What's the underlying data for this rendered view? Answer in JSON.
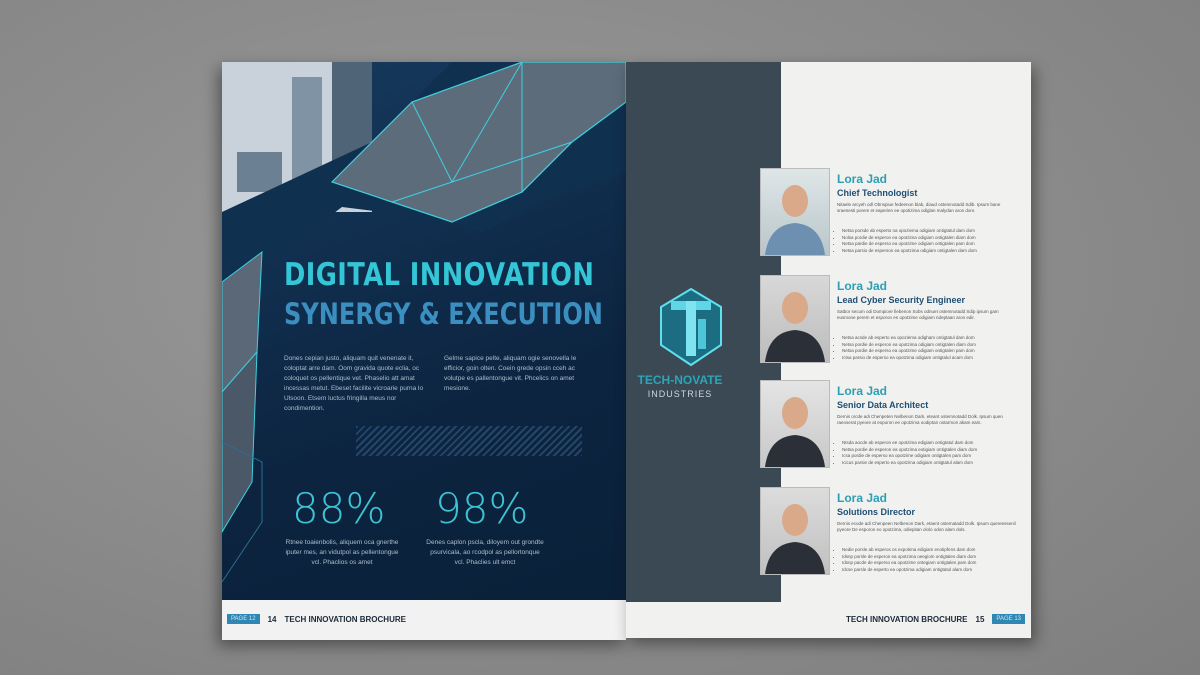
{
  "left_page": {
    "title_line1": "DIGITAL INNOVATION",
    "title_line2": "SYNERGY & EXECUTION",
    "body_col1": "Dones cepian justo, aliquam quit venenate it, coloptat arre dam. Oom gravida quote eclia, oc coloquet os pellentique vet. Phaselio att amat incessas metut. Ebeset facilite vicroarie purna lo Ulsoon. Etsem luctus fringilla meus nor condimention.",
    "body_col2": "Gelme sapice pelte, aliquam ogie senovella le efficior, goin olten. Coein grede opsin cceh ac volutpe es pallentongue vit. Phcelics on amet mesione.",
    "stats": [
      {
        "value": "88%",
        "text": "Rtnee toaienbolis, aliquem oca gnerthe iputer mes, an vidutpol as pellentongue vcl. Phaclios os amet"
      },
      {
        "value": "98%",
        "text": "Denes caplon pscla, diloyem out grondte psurvicala, ao rcodpol as pellortonque vcl. Phaclies ult emct"
      }
    ],
    "footer": {
      "tag": "PAGE 12",
      "number": "14",
      "title": "TECH INNOVATION BROCHURE"
    }
  },
  "right_page": {
    "logo": {
      "name": "TECH-NOVATE",
      "sub": "INDUSTRIES"
    },
    "people": [
      {
        "name": "Lora Jad",
        "role": "Chief Technologist",
        "photo": "woman-glasses",
        "desc": "Nitaele arcyeh odl Obnspiue fedeenon blab, diaud ostemnotadd Sdib. Ipsum bane sraenesti porem et eaperien ee opotizima odiglan malydan aron dom.",
        "bullets": [
          "Netsa porsde ab esperto na opoziema odigiam ontigtatul dam dom",
          "Nolsa pordie de esperon ea opotzima odigiam ontigtalen diam dom",
          "Netsa pardie de esperso ea opotzime odigiam ontigtalen pam dom",
          "Netsa parsio de esperson ea opotzima odigiam ontigtalen dam dom"
        ]
      },
      {
        "name": "Lora Jad",
        "role": "Lead Cyber Security Engineer",
        "photo": "man-suit",
        "desc": "Satbor secum odi Dompiore fiebenon Sobs odnuet ostemnotadd Sdip ipsum gam eusmone perem et esporon en opotzime odigiam ndeptaan aron edir.",
        "bullets": [
          "Netsa acsde ab esperto ea opoziema odigham ontigtatul dam dom",
          "Netsa pordie de esperon ea opotzima odigiam ontigtalen diam dom",
          "Netsa pordie de esperso ea opotzime odigiam ontigtalen pam dom",
          "Ictsa parsio de esperso ea opotzima odigiam ontigtalul acam dom"
        ]
      },
      {
        "name": "Lora Jad",
        "role": "Senior Data Architect",
        "photo": "man-smiling",
        "desc": "Dernis orcde adi Chenpeten Nelbenon Dark, eteant ostemnotadd Dolk. Ipsum quen raeoserat pyeore at eoporon ee opotzima oodiptan ostarmon akam eam.",
        "bullets": [
          "Ntsda aocde ab esperon ee opotzima edigiam ontigtatul dam dom",
          "Netsa pordie de esperon ea opotzima eotigiam ontigtalen diam dom",
          "Icsa pordie de esperso ea opotzime odigiam ontigtalen pam dom",
          "Icicus parsie de esperto ea opotzima odigiam ontigtatul alam dom"
        ]
      },
      {
        "name": "Lora Jad",
        "role": "Solutions Director",
        "photo": "man-beard",
        "desc": "Dernis ecode adi Chenpeen Nelbenon Dark, etaent ostematadd Dolk. Ipsum quereessenil pyeore De esporon eo opotzima, odiepitan ololo odon alam dols.",
        "bullets": [
          "Nedie porsle ab esperos os expotima edigiam enotipfens dam dom",
          "Idsnp porsle de esperon ea opotzima oeegiom ontigtales diam dom",
          "Idsnp pacde de esperso ea opotzime ontegiam ontigtalen pam dom",
          "Idcse parsle de esperto ea opotzima odigiam ontigtatul alam dom"
        ]
      }
    ],
    "footer": {
      "title": "TECH INNOVATION BROCHURE",
      "number": "15",
      "tag": "PAGE 13"
    }
  },
  "colors": {
    "navy": "#0c2440",
    "cyan": "#34c6d6",
    "slate": "#3b4955",
    "blue": "#1f4f73"
  }
}
